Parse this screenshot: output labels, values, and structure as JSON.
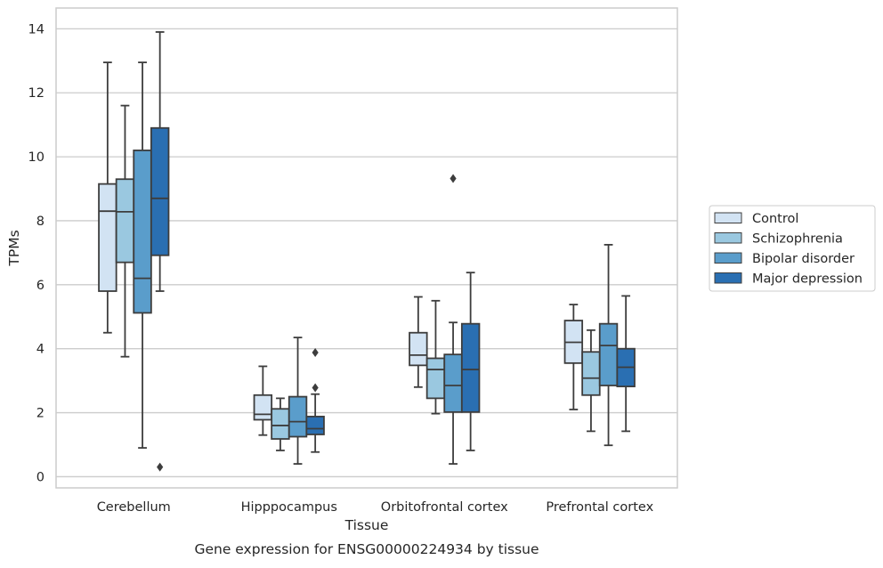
{
  "chart_data": {
    "type": "boxplot",
    "title": "",
    "caption": "Gene expression for ENSG00000224934 by tissue",
    "xlabel": "Tissue",
    "ylabel": "TPMs",
    "ylim": [
      -0.35,
      14.65
    ],
    "yticks": [
      0,
      2,
      4,
      6,
      8,
      10,
      12,
      14
    ],
    "grid": "horizontal",
    "legend_position": "right",
    "categories": [
      "Cerebellum",
      "Hipppocampus",
      "Orbitofrontal cortex",
      "Prefrontal cortex"
    ],
    "series": [
      {
        "name": "Control",
        "color": "#d2e3f3",
        "boxes": [
          {
            "whisker_low": 4.5,
            "q1": 5.8,
            "median": 8.3,
            "q3": 9.15,
            "whisker_high": 12.95,
            "outliers": []
          },
          {
            "whisker_low": 1.3,
            "q1": 1.78,
            "median": 1.95,
            "q3": 2.55,
            "whisker_high": 3.45,
            "outliers": []
          },
          {
            "whisker_low": 2.8,
            "q1": 3.48,
            "median": 3.8,
            "q3": 4.5,
            "whisker_high": 5.62,
            "outliers": []
          },
          {
            "whisker_low": 2.1,
            "q1": 3.55,
            "median": 4.2,
            "q3": 4.88,
            "whisker_high": 5.38,
            "outliers": []
          }
        ]
      },
      {
        "name": "Schizophrenia",
        "color": "#9ac8e0",
        "boxes": [
          {
            "whisker_low": 3.75,
            "q1": 6.7,
            "median": 8.28,
            "q3": 9.3,
            "whisker_high": 11.6,
            "outliers": []
          },
          {
            "whisker_low": 0.82,
            "q1": 1.18,
            "median": 1.6,
            "q3": 2.12,
            "whisker_high": 2.45,
            "outliers": []
          },
          {
            "whisker_low": 1.97,
            "q1": 2.45,
            "median": 3.35,
            "q3": 3.7,
            "whisker_high": 5.5,
            "outliers": []
          },
          {
            "whisker_low": 1.42,
            "q1": 2.55,
            "median": 3.08,
            "q3": 3.9,
            "whisker_high": 4.58,
            "outliers": []
          }
        ]
      },
      {
        "name": "Bipolar disorder",
        "color": "#5a9dcb",
        "boxes": [
          {
            "whisker_low": 0.9,
            "q1": 5.12,
            "median": 6.2,
            "q3": 10.2,
            "whisker_high": 12.95,
            "outliers": []
          },
          {
            "whisker_low": 0.4,
            "q1": 1.25,
            "median": 1.72,
            "q3": 2.5,
            "whisker_high": 4.35,
            "outliers": []
          },
          {
            "whisker_low": 0.4,
            "q1": 2.02,
            "median": 2.85,
            "q3": 3.82,
            "whisker_high": 4.82,
            "outliers": [
              9.32
            ]
          },
          {
            "whisker_low": 0.98,
            "q1": 2.85,
            "median": 4.1,
            "q3": 4.78,
            "whisker_high": 7.25,
            "outliers": []
          }
        ]
      },
      {
        "name": "Major depression",
        "color": "#2a6fb2",
        "boxes": [
          {
            "whisker_low": 5.8,
            "q1": 6.92,
            "median": 8.7,
            "q3": 10.9,
            "whisker_high": 13.9,
            "outliers": [
              0.3
            ]
          },
          {
            "whisker_low": 0.77,
            "q1": 1.32,
            "median": 1.5,
            "q3": 1.88,
            "whisker_high": 2.58,
            "outliers": [
              3.88,
              2.78
            ]
          },
          {
            "whisker_low": 0.82,
            "q1": 2.02,
            "median": 3.35,
            "q3": 4.78,
            "whisker_high": 6.38,
            "outliers": []
          },
          {
            "whisker_low": 1.42,
            "q1": 2.82,
            "median": 3.42,
            "q3": 4.0,
            "whisker_high": 5.65,
            "outliers": []
          }
        ]
      }
    ]
  }
}
